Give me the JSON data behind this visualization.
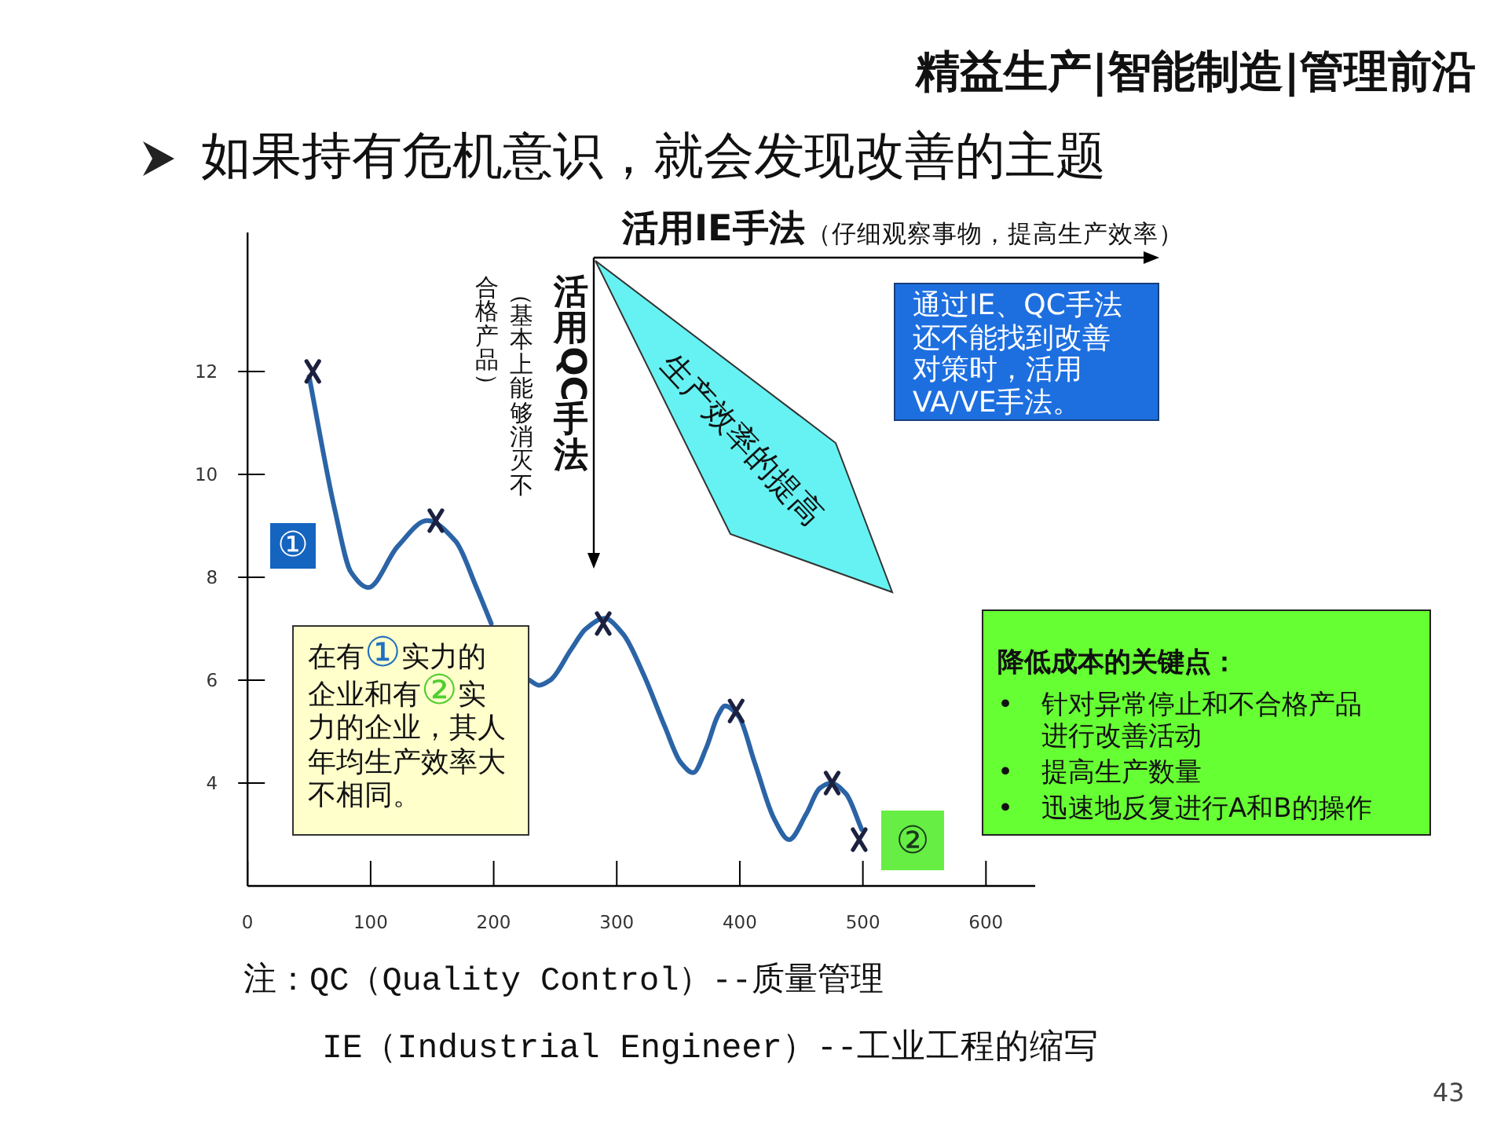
{
  "chart_data": {
    "type": "line",
    "title": "如果持有危机意识，就会发现改善的主题",
    "xlim": [
      0,
      640
    ],
    "xticks": [
      0,
      100,
      200,
      300,
      400,
      500,
      600
    ],
    "ylim": [
      2,
      14.7
    ],
    "yticks": [
      4,
      6,
      8,
      10,
      12
    ],
    "series": [
      {
        "color": "#2b64a6",
        "x": [
          50,
          71,
          84,
          98,
          122,
          146,
          169,
          186,
          198
        ],
        "values": [
          11.9,
          9.3,
          8.1,
          7.8,
          8.6,
          9.1,
          8.7,
          7.8,
          7.1
        ]
      },
      {
        "color": "#2b64a6",
        "x": [
          229,
          237,
          246,
          263,
          275,
          290,
          305,
          322,
          339,
          352,
          362,
          373,
          382,
          388,
          399,
          412,
          428,
          440,
          454,
          465,
          474,
          486,
          499
        ],
        "values": [
          6.0,
          5.9,
          6.0,
          6.6,
          7.0,
          7.2,
          6.9,
          6.1,
          5.1,
          4.4,
          4.2,
          4.7,
          5.3,
          5.5,
          5.3,
          4.4,
          3.3,
          2.9,
          3.4,
          3.9,
          4.0,
          3.8,
          3.1
        ]
      },
      {
        "type": "scatter",
        "color": "#1c2140",
        "marker": "cross",
        "x": [
          53,
          153,
          289,
          397,
          475,
          497
        ],
        "values": [
          12.0,
          9.1,
          7.1,
          5.4,
          4.0,
          2.9
        ]
      }
    ],
    "annotations": [
      "精益生产|智能制造|管理前沿",
      "活用IE手法",
      "（仔细观察事物，提高生产效率）",
      "活用QC手法",
      "（基本上能够消灭不",
      "生产效率的提高",
      "通过IE、QC手法还不能找到改善对策时，活用VA/VE手法。",
      "降低成本的关键点：",
      "• 针对异常停止和不合格产品进行改善活动",
      "• 提高生产数量",
      "• 迅速地反复进行A和B的操作",
      "在有①实力的企业和有②实力的企业，其人年均生产效率大不相同。",
      "①",
      "②",
      "注：QC（Quality Control）--质量管理",
      "IE（Industrial Engineer）--工业工程的缩写",
      "43",
      "合格产品）"
    ]
  }
}
